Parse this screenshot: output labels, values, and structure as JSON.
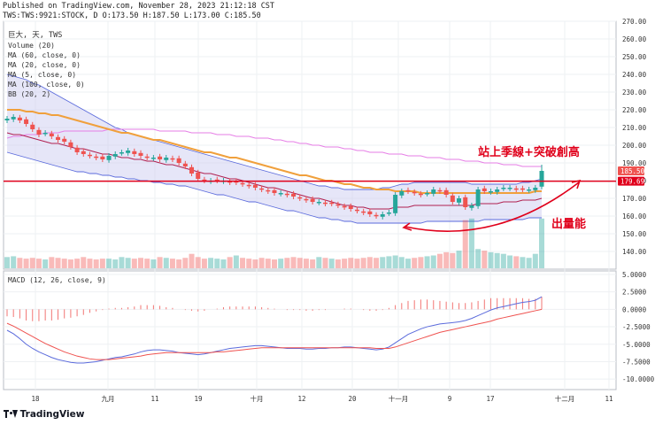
{
  "header": {
    "line1": "Published on TradingView.com, November 28, 2023 21:12:18 CST",
    "line2": "TWS:TWS:9921:STOCK, D O:173.50 H:187.50 L:173.00 C:185.50"
  },
  "legend": {
    "symbol": "巨大, 天, TWS",
    "items": [
      "Volume (20)",
      "MA (60, close, 0)",
      "MA (20, close, 0)",
      "MA (5, close, 0)",
      "MA (100, close, 0)",
      "BB (20, 2)"
    ]
  },
  "macd_label": "MACD (12, 26, close, 9)",
  "annotations": {
    "top": "站上季線+突破創高",
    "volume": "出量能"
  },
  "footer": {
    "brand": "TradingView"
  },
  "colors": {
    "up": "#26a69a",
    "down": "#ef5350",
    "ma60": "#f0a03c",
    "ma20": "#b02050",
    "ma100": "#e67ee6",
    "bb": "#5b6bdc",
    "bbfill": "#c8c8f0",
    "red": "#e0001b",
    "macd": "#5b6bdc",
    "signal": "#ef5350"
  },
  "chart_data": [
    {
      "type": "candlestick",
      "title": "巨大, 天, TWS",
      "ylim": [
        130,
        270
      ],
      "y_ticks": [
        "270.00",
        "260.00",
        "250.00",
        "240.00",
        "230.00",
        "220.00",
        "210.00",
        "200.00",
        "190.00",
        "180.00",
        "170.00",
        "160.00",
        "150.00",
        "140.00"
      ],
      "x_ticks": [
        "18",
        "九月",
        "11",
        "19",
        "十月",
        "12",
        "20",
        "十一月",
        "9",
        "17",
        "十二月",
        "11"
      ],
      "price_labels": {
        "last": {
          "value": 185.5,
          "text": "185.50"
        },
        "line": {
          "value": 179.69,
          "text": "179.69"
        }
      },
      "closes": [
        215,
        216,
        214,
        212,
        209,
        206,
        207,
        205,
        203,
        202,
        199,
        196,
        195,
        194,
        193,
        192,
        194,
        195,
        196,
        197,
        195,
        194,
        193,
        193,
        192,
        193,
        192,
        190,
        188,
        184,
        181,
        180,
        180,
        180,
        180,
        179,
        179,
        178,
        177,
        176,
        175,
        174,
        173,
        173,
        172,
        171,
        170,
        169,
        168,
        168,
        167,
        167,
        166,
        165,
        164,
        163,
        162,
        161,
        160,
        161,
        162,
        172,
        174,
        174,
        173,
        172,
        173,
        175,
        174,
        172,
        168,
        170,
        165,
        166,
        175,
        174,
        174,
        175,
        176,
        176,
        175,
        175,
        175,
        176,
        185.5
      ],
      "volumes": [
        14,
        15,
        13,
        12,
        13,
        12,
        11,
        14,
        13,
        12,
        11,
        12,
        14,
        12,
        11,
        12,
        12,
        11,
        14,
        13,
        12,
        13,
        12,
        11,
        14,
        13,
        12,
        11,
        13,
        18,
        14,
        12,
        13,
        12,
        11,
        14,
        16,
        13,
        12,
        11,
        13,
        12,
        11,
        12,
        13,
        14,
        13,
        12,
        11,
        14,
        13,
        12,
        11,
        12,
        13,
        12,
        13,
        14,
        13,
        14,
        15,
        16,
        14,
        12,
        13,
        14,
        15,
        16,
        18,
        20,
        19,
        22,
        60,
        62,
        24,
        22,
        20,
        19,
        18,
        16,
        15,
        14,
        13,
        18,
        62
      ],
      "ma60": [
        220,
        220,
        220,
        219,
        219,
        218,
        218,
        217,
        217,
        216,
        215,
        214,
        213,
        212,
        211,
        210,
        209,
        208,
        207,
        207,
        206,
        205,
        204,
        203,
        203,
        202,
        201,
        200,
        199,
        198,
        197,
        196,
        196,
        195,
        194,
        193,
        193,
        192,
        191,
        190,
        189,
        188,
        187,
        186,
        185,
        184,
        183,
        183,
        182,
        181,
        180,
        180,
        179,
        178,
        178,
        177,
        176,
        176,
        175,
        175,
        175,
        174,
        174,
        174,
        174,
        173,
        173,
        173,
        173,
        173,
        173,
        173,
        173,
        173,
        173,
        173,
        173,
        173,
        173,
        173,
        173,
        173,
        173,
        174,
        174
      ],
      "ma20": [
        207,
        206,
        206,
        205,
        204,
        203,
        202,
        201,
        201,
        200,
        199,
        198,
        198,
        197,
        196,
        195,
        195,
        194,
        193,
        193,
        192,
        192,
        191,
        191,
        190,
        189,
        189,
        188,
        187,
        186,
        185,
        184,
        184,
        183,
        182,
        181,
        181,
        180,
        179,
        178,
        177,
        176,
        176,
        175,
        174,
        173,
        172,
        171,
        170,
        170,
        169,
        168,
        167,
        166,
        166,
        165,
        165,
        164,
        164,
        164,
        164,
        165,
        165,
        165,
        166,
        166,
        166,
        166,
        166,
        166,
        166,
        166,
        166,
        166,
        167,
        167,
        167,
        167,
        168,
        168,
        168,
        169,
        169,
        169,
        170
      ],
      "ma100": [
        204,
        205,
        205,
        206,
        206,
        206,
        207,
        207,
        207,
        208,
        208,
        208,
        208,
        208,
        208,
        208,
        209,
        209,
        209,
        209,
        209,
        209,
        209,
        209,
        208,
        208,
        208,
        208,
        208,
        207,
        207,
        207,
        207,
        206,
        206,
        206,
        205,
        205,
        205,
        204,
        204,
        204,
        203,
        203,
        202,
        202,
        201,
        201,
        200,
        200,
        199,
        199,
        199,
        198,
        198,
        197,
        197,
        196,
        196,
        196,
        195,
        195,
        195,
        194,
        194,
        194,
        193,
        193,
        193,
        192,
        192,
        192,
        191,
        191,
        191,
        190,
        190,
        190,
        189,
        189,
        189,
        188,
        188,
        188,
        188
      ],
      "bb_upper": [
        240,
        239,
        238,
        237,
        235,
        234,
        232,
        230,
        228,
        226,
        224,
        222,
        220,
        218,
        216,
        214,
        212,
        210,
        209,
        207,
        206,
        205,
        204,
        203,
        202,
        201,
        200,
        199,
        198,
        197,
        196,
        195,
        194,
        193,
        192,
        191,
        190,
        189,
        188,
        187,
        186,
        185,
        184,
        183,
        182,
        181,
        180,
        179,
        178,
        177,
        177,
        176,
        176,
        175,
        175,
        175,
        175,
        175,
        175,
        176,
        176,
        177,
        178,
        178,
        179,
        179,
        179,
        179,
        179,
        179,
        179,
        179,
        179,
        178,
        178,
        178,
        178,
        178,
        178,
        178,
        178,
        179,
        179,
        180,
        181
      ],
      "bb_lower": [
        196,
        195,
        194,
        193,
        192,
        191,
        190,
        189,
        188,
        187,
        186,
        185,
        185,
        184,
        184,
        183,
        183,
        182,
        182,
        181,
        181,
        180,
        180,
        179,
        179,
        178,
        178,
        177,
        177,
        176,
        175,
        174,
        173,
        172,
        172,
        171,
        170,
        169,
        168,
        168,
        167,
        166,
        165,
        164,
        163,
        163,
        162,
        161,
        160,
        159,
        159,
        158,
        158,
        157,
        157,
        156,
        156,
        156,
        156,
        156,
        156,
        156,
        156,
        156,
        156,
        156,
        157,
        157,
        157,
        157,
        157,
        157,
        157,
        157,
        157,
        158,
        158,
        158,
        158,
        158,
        158,
        158,
        159,
        159,
        159
      ]
    },
    {
      "type": "line",
      "title": "MACD (12, 26, close, 9)",
      "ylim": [
        -11.5,
        5.5
      ],
      "y_ticks": [
        {
          "v": 5,
          "t": "5.0000"
        },
        {
          "v": 2.5,
          "t": "2.5000"
        },
        {
          "v": 0,
          "t": "0.0000"
        },
        {
          "v": -2.5,
          "t": "-2.5000"
        },
        {
          "v": -5,
          "t": "-5.0000"
        },
        {
          "v": -7.5,
          "t": "-7.5000"
        },
        {
          "v": -10,
          "t": "-10.0000"
        }
      ],
      "macd": [
        -3,
        -3.5,
        -4.2,
        -5,
        -5.6,
        -6.1,
        -6.5,
        -6.9,
        -7.2,
        -7.4,
        -7.6,
        -7.7,
        -7.7,
        -7.6,
        -7.5,
        -7.3,
        -7.1,
        -6.9,
        -6.8,
        -6.6,
        -6.4,
        -6.1,
        -5.9,
        -5.8,
        -5.8,
        -5.9,
        -6,
        -6.2,
        -6.3,
        -6.4,
        -6.5,
        -6.4,
        -6.2,
        -6,
        -5.8,
        -5.6,
        -5.5,
        -5.4,
        -5.3,
        -5.2,
        -5.2,
        -5.3,
        -5.4,
        -5.5,
        -5.6,
        -5.6,
        -5.6,
        -5.7,
        -5.7,
        -5.6,
        -5.6,
        -5.5,
        -5.5,
        -5.4,
        -5.4,
        -5.5,
        -5.6,
        -5.7,
        -5.8,
        -5.7,
        -5.4,
        -4.8,
        -4.2,
        -3.6,
        -3.2,
        -2.8,
        -2.5,
        -2.3,
        -2.1,
        -2,
        -1.9,
        -1.8,
        -1.6,
        -1.3,
        -0.9,
        -0.5,
        -0.1,
        0.2,
        0.4,
        0.6,
        0.8,
        1,
        1.1,
        1.3,
        1.8
      ],
      "signal": [
        -2,
        -2.4,
        -2.9,
        -3.4,
        -3.9,
        -4.4,
        -4.9,
        -5.3,
        -5.7,
        -6.1,
        -6.4,
        -6.7,
        -6.9,
        -7.1,
        -7.2,
        -7.2,
        -7.2,
        -7.1,
        -7,
        -6.9,
        -6.8,
        -6.7,
        -6.5,
        -6.4,
        -6.3,
        -6.2,
        -6.2,
        -6.2,
        -6.2,
        -6.2,
        -6.2,
        -6.2,
        -6.2,
        -6.1,
        -6.1,
        -6,
        -5.9,
        -5.8,
        -5.7,
        -5.6,
        -5.5,
        -5.5,
        -5.5,
        -5.5,
        -5.5,
        -5.5,
        -5.5,
        -5.5,
        -5.5,
        -5.5,
        -5.5,
        -5.5,
        -5.5,
        -5.5,
        -5.5,
        -5.5,
        -5.5,
        -5.5,
        -5.6,
        -5.6,
        -5.6,
        -5.4,
        -5.1,
        -4.8,
        -4.5,
        -4.2,
        -3.9,
        -3.6,
        -3.3,
        -3.1,
        -2.9,
        -2.7,
        -2.5,
        -2.3,
        -2.1,
        -1.9,
        -1.7,
        -1.4,
        -1.2,
        -1,
        -0.8,
        -0.6,
        -0.4,
        -0.2,
        0
      ]
    }
  ]
}
